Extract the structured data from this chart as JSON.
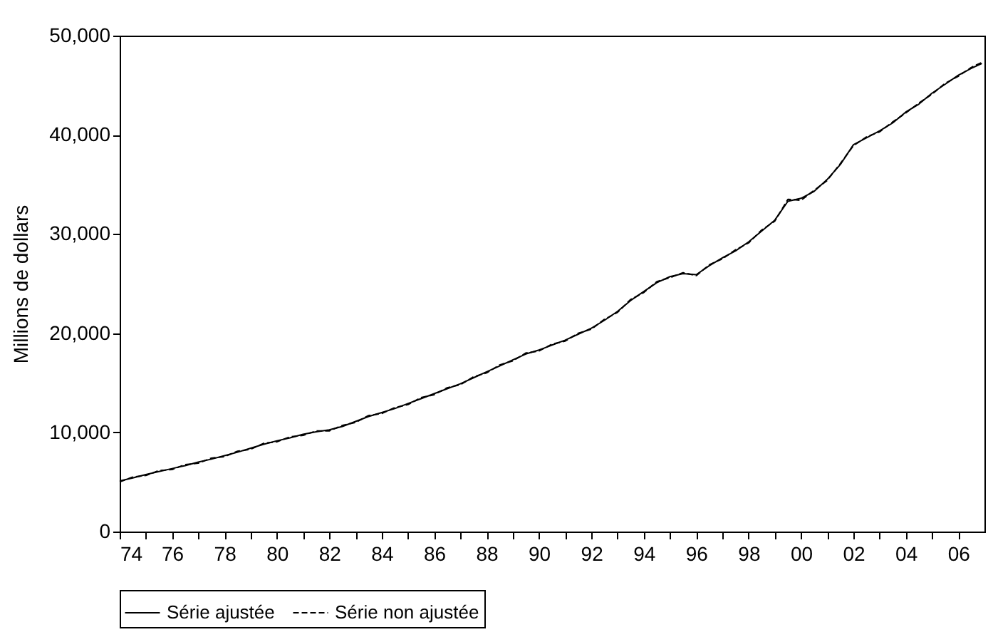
{
  "chart_data": {
    "type": "line",
    "ylabel": "Millions de dollars",
    "x": [
      1974.0,
      1974.5,
      1975.0,
      1975.5,
      1976.0,
      1976.5,
      1977.0,
      1977.5,
      1978.0,
      1978.5,
      1979.0,
      1979.5,
      1980.0,
      1980.5,
      1981.0,
      1981.5,
      1982.0,
      1982.5,
      1983.0,
      1983.5,
      1984.0,
      1984.5,
      1985.0,
      1985.5,
      1986.0,
      1986.5,
      1987.0,
      1987.5,
      1988.0,
      1988.5,
      1989.0,
      1989.5,
      1990.0,
      1990.5,
      1991.0,
      1991.5,
      1992.0,
      1992.5,
      1993.0,
      1993.5,
      1994.0,
      1994.5,
      1995.0,
      1995.5,
      1996.0,
      1996.5,
      1997.0,
      1997.5,
      1998.0,
      1998.5,
      1999.0,
      1999.5,
      2000.0,
      2000.5,
      2001.0,
      2001.5,
      2002.0,
      2002.5,
      2003.0,
      2003.5,
      2004.0,
      2004.5,
      2005.0,
      2005.5,
      2006.0,
      2006.5,
      2006.9
    ],
    "series": [
      {
        "name": "Série ajustée",
        "color": "#000000",
        "line_style": "solid",
        "values": [
          5100,
          5400,
          5750,
          6050,
          6350,
          6650,
          7000,
          7300,
          7650,
          8000,
          8400,
          8800,
          9150,
          9450,
          9800,
          10050,
          10250,
          10600,
          11100,
          11600,
          12000,
          12400,
          12900,
          13400,
          13900,
          14400,
          14900,
          15500,
          16100,
          16700,
          17300,
          17900,
          18300,
          18800,
          19300,
          19900,
          20500,
          21300,
          22200,
          23300,
          24200,
          25100,
          25700,
          26000,
          25900,
          26800,
          27600,
          28300,
          29200,
          30300,
          31400,
          33300,
          33600,
          34300,
          35500,
          37000,
          39000,
          39700,
          40400,
          41200,
          42300,
          43100,
          44200,
          45100,
          46000,
          46700,
          47200
        ]
      },
      {
        "name": "Série non ajustée",
        "color": "#000000",
        "line_style": "dashed",
        "values": [
          5000,
          5500,
          5650,
          6150,
          6250,
          6750,
          6900,
          7400,
          7550,
          8100,
          8300,
          8900,
          9050,
          9550,
          9700,
          10150,
          10150,
          10700,
          11000,
          11700,
          11900,
          12500,
          12800,
          13500,
          13800,
          14500,
          14800,
          15600,
          16000,
          16800,
          17200,
          18000,
          18200,
          18900,
          19200,
          20000,
          20400,
          21400,
          22100,
          23400,
          24100,
          25200,
          25600,
          26100,
          25800,
          26900,
          27500,
          28400,
          29100,
          30400,
          31300,
          33500,
          33400,
          34400,
          35400,
          37100,
          38900,
          39800,
          40300,
          41300,
          42200,
          43200,
          44100,
          45200,
          45900,
          46800,
          47300
        ]
      }
    ],
    "xlim": [
      1974,
      2007
    ],
    "xticks": [
      {
        "value": 1974,
        "label": "74"
      },
      {
        "value": 1975,
        "label": null
      },
      {
        "value": 1976,
        "label": "76"
      },
      {
        "value": 1977,
        "label": null
      },
      {
        "value": 1978,
        "label": "78"
      },
      {
        "value": 1979,
        "label": null
      },
      {
        "value": 1980,
        "label": "80"
      },
      {
        "value": 1981,
        "label": null
      },
      {
        "value": 1982,
        "label": "82"
      },
      {
        "value": 1983,
        "label": null
      },
      {
        "value": 1984,
        "label": "84"
      },
      {
        "value": 1985,
        "label": null
      },
      {
        "value": 1986,
        "label": "86"
      },
      {
        "value": 1987,
        "label": null
      },
      {
        "value": 1988,
        "label": "88"
      },
      {
        "value": 1989,
        "label": null
      },
      {
        "value": 1990,
        "label": "90"
      },
      {
        "value": 1991,
        "label": null
      },
      {
        "value": 1992,
        "label": "92"
      },
      {
        "value": 1993,
        "label": null
      },
      {
        "value": 1994,
        "label": "94"
      },
      {
        "value": 1995,
        "label": null
      },
      {
        "value": 1996,
        "label": "96"
      },
      {
        "value": 1997,
        "label": null
      },
      {
        "value": 1998,
        "label": "98"
      },
      {
        "value": 1999,
        "label": null
      },
      {
        "value": 2000,
        "label": "00"
      },
      {
        "value": 2001,
        "label": null
      },
      {
        "value": 2002,
        "label": "02"
      },
      {
        "value": 2003,
        "label": null
      },
      {
        "value": 2004,
        "label": "04"
      },
      {
        "value": 2005,
        "label": null
      },
      {
        "value": 2006,
        "label": "06"
      }
    ],
    "ylim": [
      0,
      50000
    ],
    "yticks": [
      0,
      {
        "value": 10000,
        "label": "10,000"
      },
      {
        "value": 20000,
        "label": "20,000"
      },
      {
        "value": 30000,
        "label": "30,000"
      },
      {
        "value": 40000,
        "label": "40,000"
      },
      {
        "value": 50000,
        "label": "50,000"
      }
    ],
    "grid": false,
    "legend": "bottom",
    "marker": "none"
  }
}
